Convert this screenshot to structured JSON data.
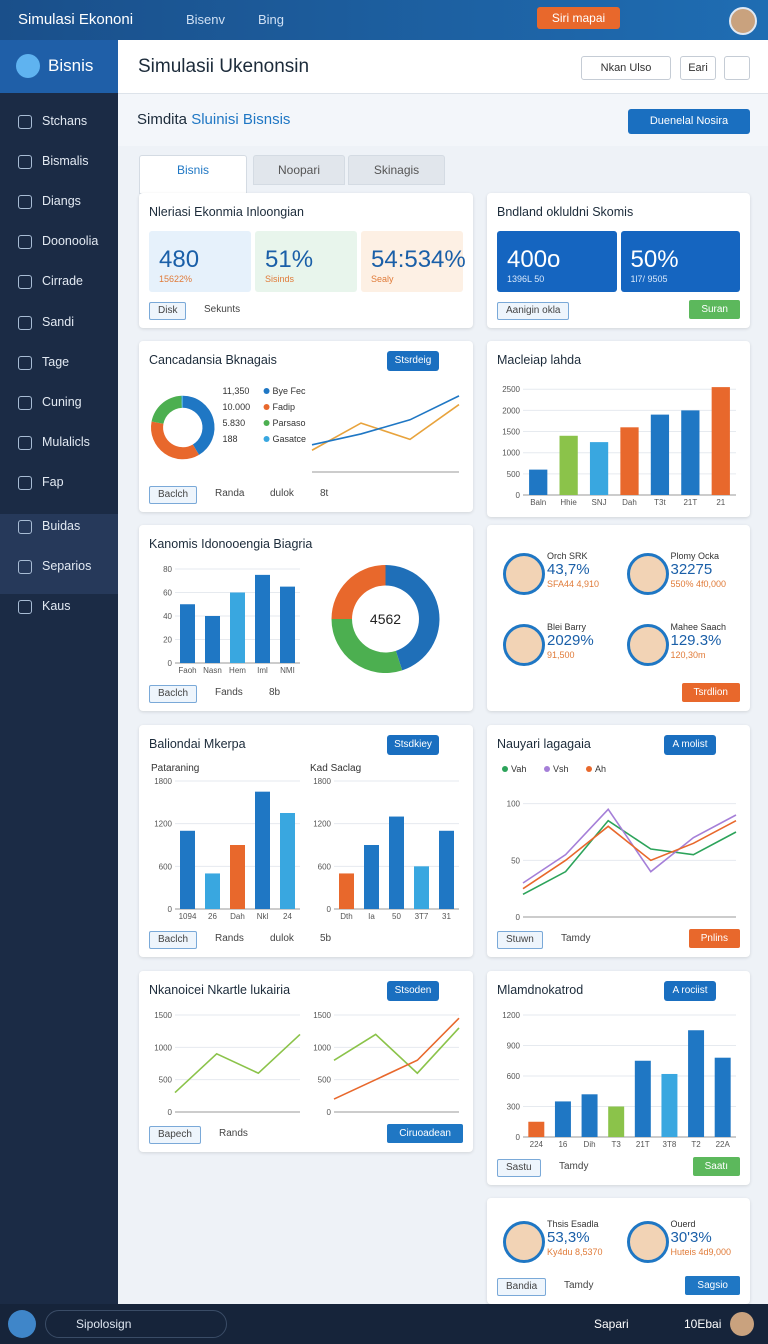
{
  "topbar": {
    "title": "Simulasi Ekononi",
    "links": [
      "Bisenv",
      "Bing"
    ],
    "button": "Siri mapai"
  },
  "sidebar": {
    "logo": "Bisnis",
    "items": [
      "Stchans",
      "Bismalis",
      "Diangs",
      "Doonoolia",
      "Cirrade",
      "Sandi",
      "Tage",
      "Cuning",
      "Mulalicls",
      "Fap",
      "Buidas",
      "Separios",
      "Kaus"
    ]
  },
  "header": {
    "title": "Simulasii Ukenonsin",
    "buttons": [
      "Nkan Ulso",
      "Eari"
    ]
  },
  "subheader": {
    "title_a": "Simdita",
    "title_b": "Sluinisi Bisnsis",
    "button": "Duenelal Nosira"
  },
  "tabs": [
    "Bisnis",
    "Noopari",
    "Skinagis"
  ],
  "cards": [
    {
      "title": "Nleriasi Ekonmia Inloongian",
      "stats": [
        {
          "value": "480",
          "label": "15622%",
          "color": "#e6f1fb"
        },
        {
          "value": "51%",
          "label": "Sisinds",
          "color": "#e8f5ec"
        },
        {
          "value": "54:534%",
          "label": "Sealy",
          "color": "#fdf0e4"
        }
      ],
      "footer": [
        "Disk",
        "Sekunts"
      ]
    },
    {
      "title": "Bndland okluldni Skomis",
      "stats": [
        {
          "value": "400o",
          "label": "1396L 50",
          "color": "#1565c0"
        },
        {
          "value": "50%",
          "label": "1l7/ 9505",
          "color": "#1565c0"
        }
      ],
      "footer": [
        "Aanigin okla"
      ],
      "button": "Suran",
      "button_color": "#5cb85c"
    },
    {
      "title": "Cancadansia Bknagais",
      "action": "Stsrdeig",
      "charts": [
        {
          "type": "donut",
          "categories": [
            "Bye Fecbgl",
            "Fadip",
            "Parsasolelo",
            "Gasatcea"
          ],
          "values": [
            11350,
            10000,
            5830,
            188
          ],
          "value_labels": [
            "11,350",
            "10.000",
            "5.830",
            "188"
          ],
          "colors": [
            "#1f77c4",
            "#e8682c",
            "#4caf50",
            "#39a7e0"
          ]
        },
        {
          "type": "line",
          "series": [
            {
              "color": "#e8a33c",
              "values": [
                20,
                45,
                30,
                62
              ]
            },
            {
              "color": "#1f77c4",
              "values": [
                25,
                35,
                48,
                70
              ]
            }
          ],
          "ylim": [
            0,
            80
          ]
        }
      ],
      "footer": [
        "Baclch",
        "Randa",
        "dulok",
        "8t"
      ]
    },
    {
      "title": "Macleiap lahda",
      "charts": [
        {
          "type": "bar",
          "categories": [
            "Baln",
            "Hhie",
            "SNJ",
            "Dah",
            "T3t",
            "21T",
            "21"
          ],
          "values": [
            600,
            1400,
            1250,
            1600,
            1900,
            2000,
            2550
          ],
          "colors": [
            "#1f77c4",
            "#8bc34a",
            "#39a7e0",
            "#e8682c",
            "#1f77c4",
            "#1f77c4",
            "#e8682c"
          ],
          "ylim": [
            0,
            2600
          ],
          "yticks": [
            0,
            500,
            1000,
            1500,
            2000,
            2500
          ]
        }
      ]
    },
    {
      "title": "Kanomis Idonooengia Biagria",
      "charts": [
        {
          "type": "bar",
          "categories": [
            "Faoh",
            "Nasn",
            "Hem",
            "Iml",
            "NMI"
          ],
          "values": [
            50,
            40,
            60,
            75,
            65
          ],
          "colors": [
            "#1f77c4",
            "#1f77c4",
            "#39a7e0",
            "#1f77c4",
            "#1f77c4"
          ],
          "ylim": [
            0,
            80
          ],
          "yticks": [
            0,
            20,
            40,
            60,
            80
          ]
        },
        {
          "type": "donut",
          "values": [
            45,
            30,
            25
          ],
          "colors": [
            "#1f6fb8",
            "#4caf50",
            "#e8682c"
          ],
          "center": "4562"
        }
      ],
      "footer": [
        "Baclch",
        "Fands",
        "8b"
      ]
    },
    {
      "stats": [
        {
          "name": "Orch SRK",
          "value": "43,7%",
          "label": "SFA44 4,910"
        },
        {
          "name": "Plomy Ocka",
          "value": "32275",
          "label": "550% 4f0,000"
        },
        {
          "name": "Blei Barry",
          "value": "2029%",
          "label": "91,500"
        },
        {
          "name": "Mahee Saach",
          "value": "129.3%",
          "label": "120,30m"
        }
      ],
      "button": "Tsrdlion",
      "button_color": "#e8682c"
    },
    {
      "title": "Baliondai Mkerpa",
      "action": "Stsdkiey",
      "charts": [
        {
          "type": "bar",
          "title": "Pataraning",
          "categories": [
            "1094",
            "26",
            "Dah",
            "Nkl",
            "24"
          ],
          "values": [
            1100,
            500,
            900,
            1650,
            1350
          ],
          "colors": [
            "#1f77c4",
            "#39a7e0",
            "#e8682c",
            "#1f77c4",
            "#39a7e0"
          ],
          "ylim": [
            0,
            1800
          ],
          "yticks": [
            0,
            600,
            1200,
            1800
          ]
        },
        {
          "type": "bar",
          "title": "Kad Saclag",
          "categories": [
            "Dth",
            "Ia",
            "50",
            "3T7",
            "31"
          ],
          "values": [
            500,
            900,
            1300,
            600,
            1100
          ],
          "colors": [
            "#e8682c",
            "#1f77c4",
            "#1f77c4",
            "#39a7e0",
            "#1f77c4"
          ],
          "ylim": [
            0,
            1800
          ],
          "yticks": [
            0,
            600,
            1200,
            1800
          ]
        }
      ],
      "footer": [
        "Baclch",
        "Rands",
        "dulok",
        "5b"
      ]
    },
    {
      "title": "Nauyari lagagaia",
      "action": "A molist",
      "charts": [
        {
          "type": "line",
          "series": [
            {
              "name": "Vah",
              "color": "#2ca35a",
              "values": [
                20,
                40,
                85,
                60,
                55,
                75
              ]
            },
            {
              "name": "Vsh",
              "color": "#a57fd8",
              "values": [
                30,
                55,
                95,
                40,
                70,
                90
              ]
            },
            {
              "name": "Ah",
              "color": "#e8682c",
              "values": [
                25,
                50,
                80,
                50,
                65,
                85
              ]
            }
          ],
          "ylim": [
            0,
            120
          ],
          "yticks": [
            0,
            50,
            100
          ]
        }
      ],
      "footer": [
        "Stuwn",
        "Tamdy"
      ],
      "button": "Pnlins",
      "button_color": "#e8682c"
    },
    {
      "title": "Nkanoicei Nkartle lukairia",
      "action": "Stsoden",
      "charts": [
        {
          "type": "line",
          "series": [
            {
              "color": "#8bc34a",
              "values": [
                300,
                900,
                600,
                1200
              ]
            }
          ],
          "ylim": [
            0,
            1500
          ],
          "yticks": [
            0,
            500,
            1000,
            1500
          ]
        },
        {
          "type": "line",
          "series": [
            {
              "color": "#8bc34a",
              "values": [
                800,
                1200,
                600,
                1300
              ]
            },
            {
              "color": "#e8682c",
              "values": [
                200,
                500,
                800,
                1450
              ]
            }
          ],
          "ylim": [
            0,
            1500
          ],
          "yticks": [
            0,
            500,
            1000,
            1500
          ]
        }
      ],
      "footer": [
        "Bapech",
        "Rands"
      ],
      "button": "Ciruoadean",
      "button_color": "#1f77c4"
    },
    {
      "title": "Mlamdnokatrod",
      "action": "A rociist",
      "charts": [
        {
          "type": "bar",
          "categories": [
            "224",
            "16",
            "Dih",
            "T3",
            "21T",
            "3T8",
            "T2",
            "22A"
          ],
          "values": [
            150,
            350,
            420,
            300,
            750,
            620,
            1050,
            780
          ],
          "colors": [
            "#e8682c",
            "#1f77c4",
            "#1f77c4",
            "#8bc34a",
            "#1f77c4",
            "#39a7e0",
            "#1f77c4",
            "#1f77c4"
          ],
          "ylim": [
            0,
            1200
          ],
          "yticks": [
            0,
            300,
            600,
            900,
            1200
          ]
        }
      ],
      "footer": [
        "Sastu",
        "Tamdy"
      ],
      "button": "Saatı",
      "button_color": "#5cb85c"
    },
    {
      "stats": [
        {
          "name": "Thsis Esadla",
          "value": "53,3%",
          "label": "Ky4du 8,5370"
        },
        {
          "name": "Ouerd",
          "value": "30'3%",
          "label": "Huteis 4d9,000"
        }
      ],
      "footer": [
        "Bandia",
        "Tamdy"
      ],
      "button": "Sagsio",
      "button_color": "#1f77c4"
    }
  ],
  "bottombar": {
    "search": "Sipolosign",
    "items": [
      "Sapari",
      "10Ebai"
    ]
  }
}
